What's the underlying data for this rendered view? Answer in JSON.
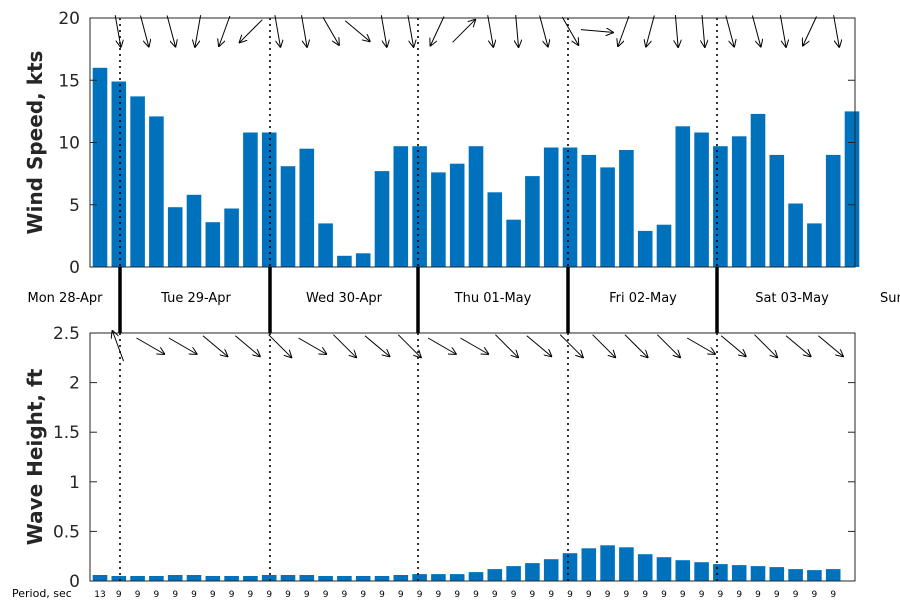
{
  "chart_data": [
    {
      "type": "bar",
      "name": "wind",
      "ylabel": "Wind Speed, kts",
      "ylim": [
        0,
        20
      ],
      "yticks": [
        0,
        5,
        10,
        15,
        20
      ],
      "color": "#0072BD",
      "values": [
        16.0,
        14.9,
        13.7,
        12.1,
        4.8,
        5.8,
        3.6,
        4.7,
        10.8,
        10.8,
        8.1,
        9.5,
        3.5,
        0.9,
        1.1,
        7.7,
        9.7,
        9.7,
        7.6,
        8.3,
        9.7,
        6.0,
        3.8,
        7.3,
        9.6,
        9.6,
        9.0,
        8.0,
        9.4,
        2.9,
        3.4,
        11.3,
        10.8,
        9.7,
        10.5,
        12.3,
        9.0,
        5.1,
        3.5,
        9.0,
        12.5
      ],
      "direction_arrows_deg": [
        280,
        285,
        285,
        260,
        250,
        225,
        280,
        280,
        300,
        320,
        280,
        280,
        245,
        45,
        280,
        275,
        285,
        300,
        355,
        250,
        255,
        275,
        275,
        285,
        285,
        280,
        245,
        280
      ],
      "day_separators_after_bar": [
        1,
        9,
        17,
        25,
        33
      ],
      "grid": false
    },
    {
      "type": "bar",
      "name": "waves",
      "ylabel": "Wave Height, ft",
      "ylim": [
        0,
        2.5
      ],
      "yticks": [
        "0",
        "0.5",
        "1",
        "1.5",
        "2",
        "2.5"
      ],
      "color": "#0072BD",
      "values": [
        0.06,
        0.05,
        0.05,
        0.05,
        0.06,
        0.06,
        0.05,
        0.05,
        0.05,
        0.06,
        0.06,
        0.06,
        0.05,
        0.05,
        0.05,
        0.05,
        0.06,
        0.07,
        0.07,
        0.07,
        0.09,
        0.12,
        0.15,
        0.18,
        0.22,
        0.28,
        0.33,
        0.36,
        0.34,
        0.27,
        0.24,
        0.21,
        0.19,
        0.17,
        0.16,
        0.15,
        0.14,
        0.12,
        0.11,
        0.12
      ],
      "direction_arrows_deg": [
        110,
        330,
        330,
        320,
        320,
        315,
        330,
        315,
        320,
        315,
        330,
        330,
        315,
        320,
        315,
        315,
        315,
        315,
        330,
        320,
        315,
        320,
        320
      ],
      "period_title": "Period, sec",
      "periods": [
        "13",
        "9",
        "9",
        "9",
        "9",
        "9",
        "9",
        "9",
        "9",
        "9",
        "9",
        "9",
        "9",
        "9",
        "9",
        "9",
        "9",
        "9",
        "9",
        "9",
        "9",
        "9",
        "9",
        "9",
        "9",
        "9",
        "9",
        "9",
        "9",
        "9",
        "9",
        "9",
        "9",
        "9",
        "9",
        "9",
        "9",
        "9",
        "9",
        "9"
      ],
      "grid": false
    }
  ],
  "day_labels": [
    "Mon 28-Apr",
    "Tue 29-Apr",
    "Wed 30-Apr",
    "Thu 01-May",
    "Fri 02-May",
    "Sat 03-May",
    "Sun"
  ]
}
